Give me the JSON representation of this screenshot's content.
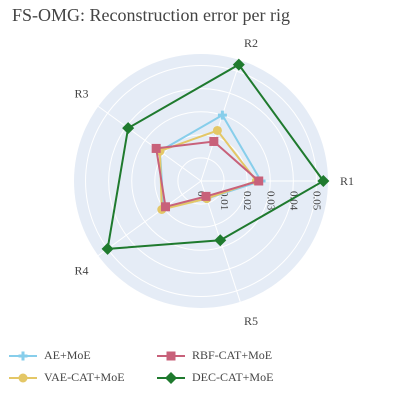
{
  "chart_data": {
    "type": "radar",
    "title": "FS-OMG: Reconstruction error per rig",
    "axes": [
      "R1",
      "R2",
      "R3",
      "R4",
      "R5"
    ],
    "radial_range": [
      0,
      0.055
    ],
    "radial_ticks": [
      "0",
      "0.01",
      "0.02",
      "0.03",
      "0.04",
      "0.05"
    ],
    "radial_tick_values": [
      0,
      0.01,
      0.02,
      0.03,
      0.04,
      0.05
    ],
    "grid": true,
    "background_color": "#e5ecf6",
    "legend_position": "bottom",
    "series": [
      {
        "name": "AE+MoE",
        "values": [
          0.026,
          0.03,
          0.022,
          0.02,
          0.008
        ],
        "color": "#87ceeb",
        "marker": "cross"
      },
      {
        "name": "VAE-CAT+MoE",
        "values": [
          0.024,
          0.023,
          0.022,
          0.021,
          0.008
        ],
        "color": "#e4c766",
        "marker": "circle"
      },
      {
        "name": "RBF-CAT+MoE",
        "values": [
          0.025,
          0.018,
          0.024,
          0.019,
          0.007
        ],
        "color": "#c8617a",
        "marker": "square"
      },
      {
        "name": "DEC-CAT+MoE",
        "values": [
          0.053,
          0.053,
          0.039,
          0.05,
          0.027
        ],
        "color": "#1f7a2e",
        "marker": "diamond"
      }
    ]
  }
}
